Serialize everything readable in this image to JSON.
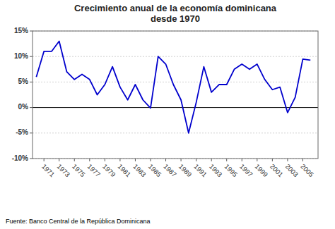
{
  "chart_data": {
    "type": "line",
    "title": "Crecimiento anual de la economía dominicana\ndesde 1970",
    "annotations": [
      "Fuente: Banco Central de la República Dominicana"
    ],
    "x": [
      1970,
      1971,
      1972,
      1973,
      1974,
      1975,
      1976,
      1977,
      1978,
      1979,
      1980,
      1981,
      1982,
      1983,
      1984,
      1985,
      1986,
      1987,
      1988,
      1989,
      1990,
      1991,
      1992,
      1993,
      1994,
      1995,
      1996,
      1997,
      1998,
      1999,
      2000,
      2001,
      2002,
      2003,
      2004,
      2005,
      2006
    ],
    "values": [
      6.0,
      11.0,
      11.0,
      13.0,
      7.0,
      5.5,
      6.5,
      5.5,
      2.5,
      4.5,
      8.0,
      4.0,
      1.5,
      4.5,
      1.5,
      -0.1,
      10.0,
      8.5,
      4.5,
      1.5,
      -5.0,
      1.0,
      8.0,
      3.0,
      4.5,
      4.5,
      7.5,
      8.5,
      7.5,
      8.5,
      5.5,
      3.5,
      4.0,
      -1.0,
      2.0,
      9.5,
      9.3
    ],
    "color": "#0000CD",
    "xlim": [
      1969.5,
      2007
    ],
    "xticks": [
      1971,
      1973,
      1975,
      1977,
      1979,
      1981,
      1983,
      1985,
      1987,
      1989,
      1991,
      1993,
      1995,
      1997,
      1999,
      2001,
      2003,
      2005
    ],
    "ylim": [
      -10,
      15
    ],
    "yticks": [
      {
        "value": -10,
        "label": "-10%"
      },
      {
        "value": -5,
        "label": "-5%"
      },
      {
        "value": 0,
        "label": "0%"
      },
      {
        "value": 5,
        "label": "5%"
      },
      {
        "value": 10,
        "label": "10%"
      },
      {
        "value": 15,
        "label": "15%"
      }
    ],
    "grid": true
  }
}
